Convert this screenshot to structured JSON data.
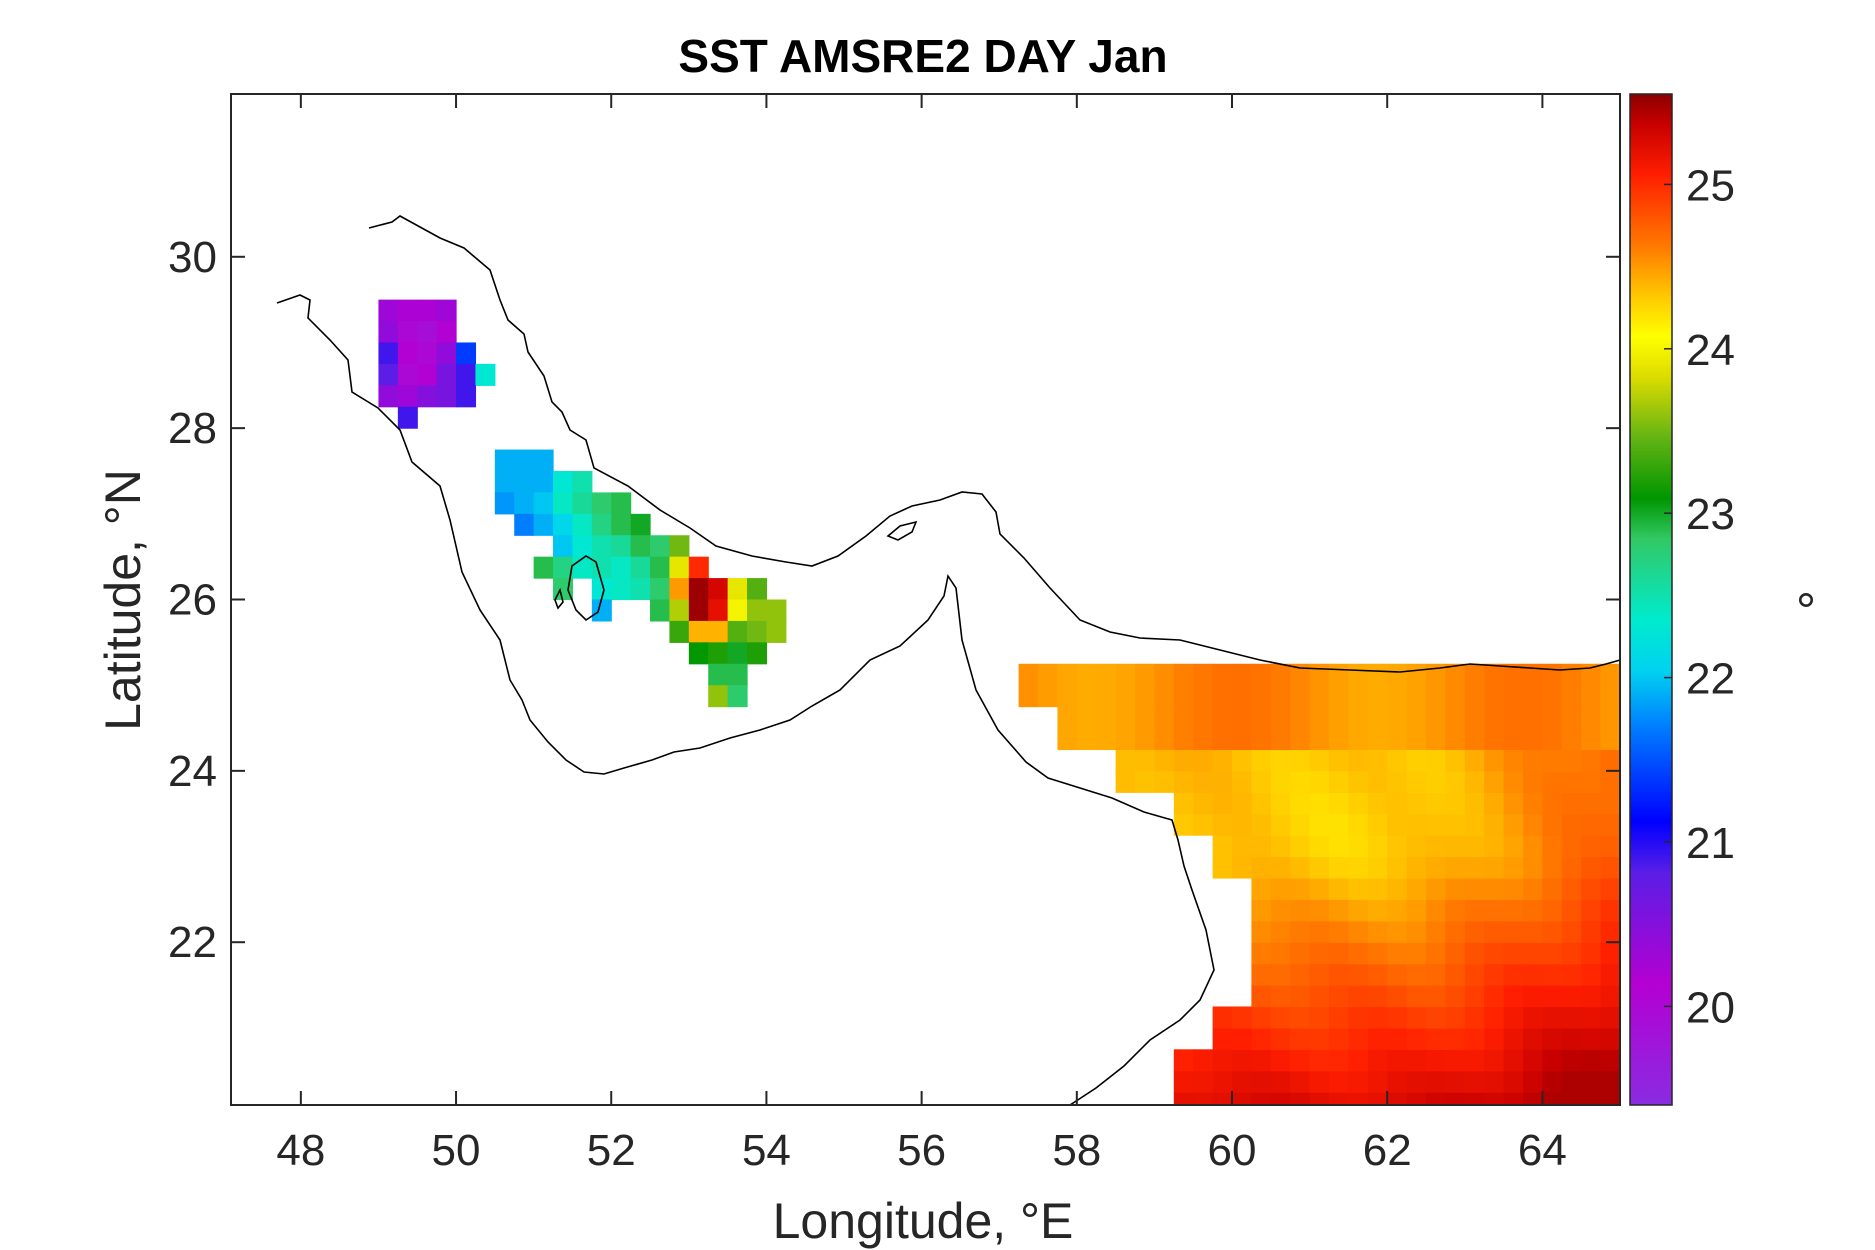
{
  "chart_data": {
    "type": "heatmap",
    "title": "SST AMSRE2 DAY Jan",
    "xlabel": "Longitude, °E",
    "ylabel": "Latitude, °N",
    "colorbar_label": "°",
    "xlim": [
      47.1,
      65.0
    ],
    "ylim": [
      20.1,
      31.9
    ],
    "xticks": [
      48,
      50,
      52,
      54,
      56,
      58,
      60,
      62,
      64
    ],
    "xtick_labels": [
      "48",
      "50",
      "52",
      "54",
      "56",
      "58",
      "60",
      "62",
      "64"
    ],
    "yticks": [
      22,
      24,
      26,
      28,
      30
    ],
    "ytick_labels": [
      "22",
      "24",
      "26",
      "28",
      "30"
    ],
    "clim": [
      19.4,
      25.55
    ],
    "cticks": [
      20,
      21,
      22,
      23,
      24,
      25
    ],
    "ctick_labels": [
      "20",
      "21",
      "22",
      "23",
      "24",
      "25"
    ],
    "colormap": "jet-like (violet-blue-cyan-green-yellow-red-dark red)",
    "grid": false,
    "cells": {
      "cell_size_deg": 0.25,
      "persian_gulf": [
        {
          "lon": 49.125,
          "lat": 29.375,
          "value": 20.3
        },
        {
          "lon": 49.375,
          "lat": 29.375,
          "value": 20.2
        },
        {
          "lon": 49.625,
          "lat": 29.375,
          "value": 20.2
        },
        {
          "lon": 49.875,
          "lat": 29.375,
          "value": 20.3
        },
        {
          "lon": 49.125,
          "lat": 29.125,
          "value": 20.4
        },
        {
          "lon": 49.375,
          "lat": 29.125,
          "value": 20.0
        },
        {
          "lon": 49.625,
          "lat": 29.125,
          "value": 19.9
        },
        {
          "lon": 49.875,
          "lat": 29.125,
          "value": 20.1
        },
        {
          "lon": 49.125,
          "lat": 28.875,
          "value": 20.9
        },
        {
          "lon": 49.375,
          "lat": 28.875,
          "value": 20.1
        },
        {
          "lon": 49.625,
          "lat": 28.875,
          "value": 20.0
        },
        {
          "lon": 49.875,
          "lat": 28.875,
          "value": 20.4
        },
        {
          "lon": 50.125,
          "lat": 28.875,
          "value": 21.4
        },
        {
          "lon": 49.125,
          "lat": 28.625,
          "value": 20.8
        },
        {
          "lon": 49.375,
          "lat": 28.625,
          "value": 20.0
        },
        {
          "lon": 49.625,
          "lat": 28.625,
          "value": 20.1
        },
        {
          "lon": 49.875,
          "lat": 28.625,
          "value": 20.6
        },
        {
          "lon": 50.125,
          "lat": 28.625,
          "value": 20.9
        },
        {
          "lon": 50.375,
          "lat": 28.625,
          "value": 22.3
        },
        {
          "lon": 49.125,
          "lat": 28.375,
          "value": 20.4
        },
        {
          "lon": 49.375,
          "lat": 28.375,
          "value": 20.3
        },
        {
          "lon": 49.625,
          "lat": 28.375,
          "value": 20.5
        },
        {
          "lon": 49.875,
          "lat": 28.375,
          "value": 20.6
        },
        {
          "lon": 50.125,
          "lat": 28.375,
          "value": 20.9
        },
        {
          "lon": 49.375,
          "lat": 28.125,
          "value": 20.9
        },
        {
          "lon": 50.625,
          "lat": 27.625,
          "value": 21.9
        },
        {
          "lon": 50.875,
          "lat": 27.625,
          "value": 21.9
        },
        {
          "lon": 51.125,
          "lat": 27.625,
          "value": 21.9
        },
        {
          "lon": 50.625,
          "lat": 27.375,
          "value": 21.9
        },
        {
          "lon": 50.875,
          "lat": 27.375,
          "value": 21.9
        },
        {
          "lon": 51.125,
          "lat": 27.375,
          "value": 21.9
        },
        {
          "lon": 51.375,
          "lat": 27.375,
          "value": 22.3
        },
        {
          "lon": 51.625,
          "lat": 27.375,
          "value": 22.5
        },
        {
          "lon": 50.625,
          "lat": 27.125,
          "value": 21.8
        },
        {
          "lon": 50.875,
          "lat": 27.125,
          "value": 21.9
        },
        {
          "lon": 51.125,
          "lat": 27.125,
          "value": 22.0
        },
        {
          "lon": 51.375,
          "lat": 27.125,
          "value": 22.4
        },
        {
          "lon": 51.625,
          "lat": 27.125,
          "value": 22.6
        },
        {
          "lon": 51.875,
          "lat": 27.125,
          "value": 22.8
        },
        {
          "lon": 52.125,
          "lat": 27.125,
          "value": 22.9
        },
        {
          "lon": 50.875,
          "lat": 26.875,
          "value": 21.7
        },
        {
          "lon": 51.125,
          "lat": 26.875,
          "value": 21.9
        },
        {
          "lon": 51.375,
          "lat": 26.875,
          "value": 22.1
        },
        {
          "lon": 51.625,
          "lat": 26.875,
          "value": 22.4
        },
        {
          "lon": 51.875,
          "lat": 26.875,
          "value": 22.7
        },
        {
          "lon": 52.125,
          "lat": 26.875,
          "value": 22.9
        },
        {
          "lon": 52.375,
          "lat": 26.875,
          "value": 23.0
        },
        {
          "lon": 51.375,
          "lat": 26.625,
          "value": 22.0
        },
        {
          "lon": 51.625,
          "lat": 26.625,
          "value": 22.3
        },
        {
          "lon": 51.875,
          "lat": 26.625,
          "value": 22.5
        },
        {
          "lon": 52.125,
          "lat": 26.625,
          "value": 22.6
        },
        {
          "lon": 52.375,
          "lat": 26.625,
          "value": 22.9
        },
        {
          "lon": 52.625,
          "lat": 26.625,
          "value": 22.8
        },
        {
          "lon": 52.875,
          "lat": 26.625,
          "value": 23.5
        },
        {
          "lon": 51.125,
          "lat": 26.375,
          "value": 22.9
        },
        {
          "lon": 51.375,
          "lat": 26.375,
          "value": 22.7
        },
        {
          "lon": 51.625,
          "lat": 26.375,
          "value": 22.4
        },
        {
          "lon": 51.875,
          "lat": 26.375,
          "value": 22.5
        },
        {
          "lon": 52.125,
          "lat": 26.375,
          "value": 22.4
        },
        {
          "lon": 52.375,
          "lat": 26.375,
          "value": 22.6
        },
        {
          "lon": 52.625,
          "lat": 26.375,
          "value": 22.9
        },
        {
          "lon": 52.875,
          "lat": 26.375,
          "value": 23.9
        },
        {
          "lon": 53.125,
          "lat": 26.375,
          "value": 25.0
        },
        {
          "lon": 51.375,
          "lat": 26.125,
          "value": 22.8
        },
        {
          "lon": 51.875,
          "lat": 26.125,
          "value": 22.3
        },
        {
          "lon": 52.125,
          "lat": 26.125,
          "value": 22.4
        },
        {
          "lon": 52.375,
          "lat": 26.125,
          "value": 22.5
        },
        {
          "lon": 52.625,
          "lat": 26.125,
          "value": 22.8
        },
        {
          "lon": 52.875,
          "lat": 26.125,
          "value": 24.5
        },
        {
          "lon": 53.125,
          "lat": 26.125,
          "value": 25.5
        },
        {
          "lon": 53.375,
          "lat": 26.125,
          "value": 25.3
        },
        {
          "lon": 53.625,
          "lat": 26.125,
          "value": 23.9
        },
        {
          "lon": 53.875,
          "lat": 26.125,
          "value": 23.4
        },
        {
          "lon": 51.875,
          "lat": 25.875,
          "value": 21.9
        },
        {
          "lon": 52.625,
          "lat": 25.875,
          "value": 22.9
        },
        {
          "lon": 52.875,
          "lat": 25.875,
          "value": 23.7
        },
        {
          "lon": 53.125,
          "lat": 25.875,
          "value": 25.5
        },
        {
          "lon": 53.375,
          "lat": 25.875,
          "value": 25.2
        },
        {
          "lon": 53.625,
          "lat": 25.875,
          "value": 24.0
        },
        {
          "lon": 53.875,
          "lat": 25.875,
          "value": 23.6
        },
        {
          "lon": 54.125,
          "lat": 25.875,
          "value": 23.6
        },
        {
          "lon": 52.875,
          "lat": 25.625,
          "value": 23.3
        },
        {
          "lon": 53.125,
          "lat": 25.625,
          "value": 24.4
        },
        {
          "lon": 53.375,
          "lat": 25.625,
          "value": 24.4
        },
        {
          "lon": 53.625,
          "lat": 25.625,
          "value": 23.4
        },
        {
          "lon": 53.875,
          "lat": 25.625,
          "value": 23.5
        },
        {
          "lon": 54.125,
          "lat": 25.625,
          "value": 23.6
        },
        {
          "lon": 53.125,
          "lat": 25.375,
          "value": 23.1
        },
        {
          "lon": 53.375,
          "lat": 25.375,
          "value": 23.2
        },
        {
          "lon": 53.625,
          "lat": 25.375,
          "value": 23.0
        },
        {
          "lon": 53.875,
          "lat": 25.375,
          "value": 23.2
        },
        {
          "lon": 53.375,
          "lat": 25.125,
          "value": 22.9
        },
        {
          "lon": 53.625,
          "lat": 25.125,
          "value": 22.9
        },
        {
          "lon": 53.375,
          "lat": 24.875,
          "value": 23.6
        },
        {
          "lon": 53.625,
          "lat": 24.875,
          "value": 22.8
        }
      ],
      "arabian_sea_description": "Gulf of Oman / Arabian Sea field, roughly 57.25–65°E, 20.1–25.25°N, values about 24.3–25.4 (orange to dark red), warmest in the south and east"
    }
  }
}
